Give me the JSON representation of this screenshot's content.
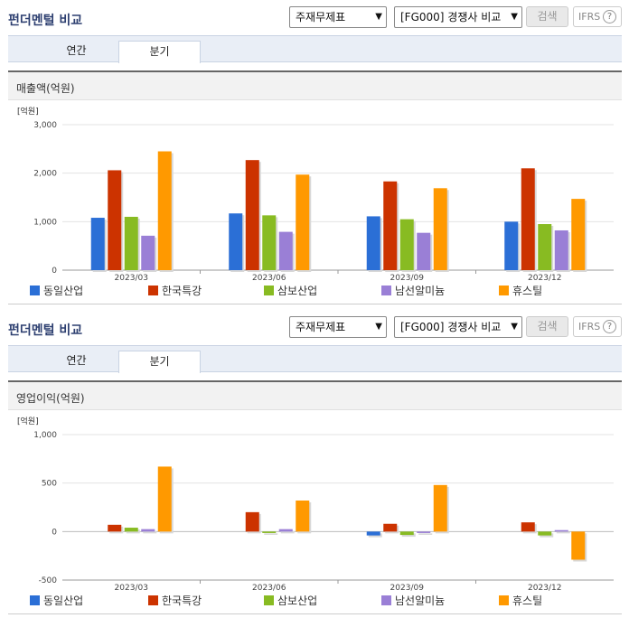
{
  "panels": [
    {
      "title": "펀더멘털 비교",
      "select1": "주재무제표",
      "select2": "[FG000] 경쟁사 비교",
      "search_label": "검색",
      "ifrs_label": "IFRS",
      "ifrs_help": "?",
      "tabs": [
        "연간",
        "분기"
      ],
      "card_title": "매출액(억원)",
      "unit_label": "[억원]"
    },
    {
      "title": "펀더멘털 비교",
      "select1": "주재무제표",
      "select2": "[FG000] 경쟁사 비교",
      "search_label": "검색",
      "ifrs_label": "IFRS",
      "ifrs_help": "?",
      "tabs": [
        "연간",
        "분기"
      ],
      "card_title": "영업이익(억원)",
      "unit_label": "[억원]"
    }
  ],
  "chart_data": [
    {
      "type": "bar",
      "ylabel": "[억원]",
      "categories": [
        "2023/03",
        "2023/06",
        "2023/09",
        "2023/12"
      ],
      "ylim": [
        0,
        3000
      ],
      "yticks": [
        0,
        1000,
        2000,
        3000
      ],
      "ytick_labels": [
        "0",
        "1,000",
        "2,000",
        "3,000"
      ],
      "series": [
        {
          "name": "동일산업",
          "color": "#2b6fd6",
          "values": [
            1080,
            1170,
            1110,
            1000
          ]
        },
        {
          "name": "한국특강",
          "color": "#cc3300",
          "values": [
            2060,
            2270,
            1830,
            2100
          ]
        },
        {
          "name": "삼보산업",
          "color": "#88bb22",
          "values": [
            1100,
            1130,
            1050,
            950
          ]
        },
        {
          "name": "남선알미늄",
          "color": "#9a7fd6",
          "values": [
            710,
            790,
            770,
            820
          ]
        },
        {
          "name": "휴스틸",
          "color": "#ff9900",
          "values": [
            2450,
            1970,
            1690,
            1470
          ]
        }
      ],
      "legend_position": "bottom",
      "grid": true
    },
    {
      "type": "bar",
      "ylabel": "[억원]",
      "categories": [
        "2023/03",
        "2023/06",
        "2023/09",
        "2023/12"
      ],
      "ylim": [
        -500,
        1000
      ],
      "yticks": [
        -500,
        0,
        500,
        1000
      ],
      "ytick_labels": [
        "-500",
        "0",
        "500",
        "1,000"
      ],
      "series": [
        {
          "name": "동일산업",
          "color": "#2b6fd6",
          "values": [
            0,
            0,
            -40,
            0
          ]
        },
        {
          "name": "한국특강",
          "color": "#cc3300",
          "values": [
            70,
            200,
            80,
            95
          ]
        },
        {
          "name": "삼보산업",
          "color": "#88bb22",
          "values": [
            40,
            -15,
            -35,
            -40
          ]
        },
        {
          "name": "남선알미늄",
          "color": "#9a7fd6",
          "values": [
            25,
            25,
            -15,
            15
          ]
        },
        {
          "name": "휴스틸",
          "color": "#ff9900",
          "values": [
            670,
            320,
            480,
            -290
          ]
        }
      ],
      "legend_position": "bottom",
      "grid": true
    }
  ]
}
